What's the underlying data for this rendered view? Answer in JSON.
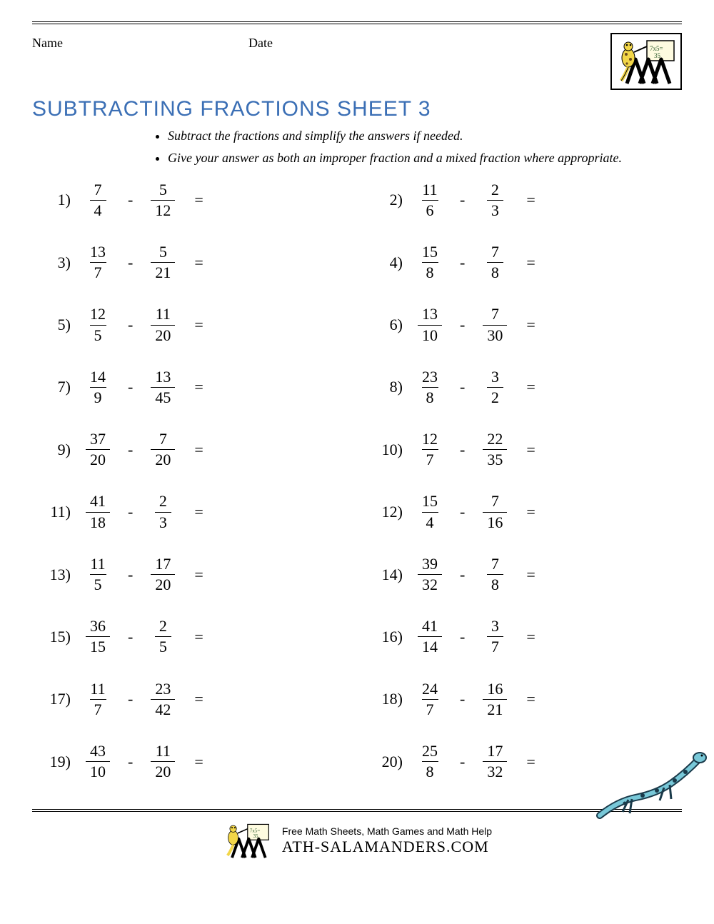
{
  "header": {
    "name_label": "Name",
    "date_label": "Date"
  },
  "title": "SUBTRACTING FRACTIONS SHEET 3",
  "instructions": [
    "Subtract the fractions and simplify the answers if needed.",
    "Give your answer as both an improper fraction and a mixed fraction where appropriate."
  ],
  "symbols": {
    "minus": "-",
    "equals": "=",
    "paren": ")"
  },
  "problems": [
    {
      "n": "1",
      "a_num": "7",
      "a_den": "4",
      "b_num": "5",
      "b_den": "12"
    },
    {
      "n": "2",
      "a_num": "11",
      "a_den": "6",
      "b_num": "2",
      "b_den": "3"
    },
    {
      "n": "3",
      "a_num": "13",
      "a_den": "7",
      "b_num": "5",
      "b_den": "21"
    },
    {
      "n": "4",
      "a_num": "15",
      "a_den": "8",
      "b_num": "7",
      "b_den": "8"
    },
    {
      "n": "5",
      "a_num": "12",
      "a_den": "5",
      "b_num": "11",
      "b_den": "20"
    },
    {
      "n": "6",
      "a_num": "13",
      "a_den": "10",
      "b_num": "7",
      "b_den": "30"
    },
    {
      "n": "7",
      "a_num": "14",
      "a_den": "9",
      "b_num": "13",
      "b_den": "45"
    },
    {
      "n": "8",
      "a_num": "23",
      "a_den": "8",
      "b_num": "3",
      "b_den": "2"
    },
    {
      "n": "9",
      "a_num": "37",
      "a_den": "20",
      "b_num": "7",
      "b_den": "20"
    },
    {
      "n": "10",
      "a_num": "12",
      "a_den": "7",
      "b_num": "22",
      "b_den": "35"
    },
    {
      "n": "11",
      "a_num": "41",
      "a_den": "18",
      "b_num": "2",
      "b_den": "3"
    },
    {
      "n": "12",
      "a_num": "15",
      "a_den": "4",
      "b_num": "7",
      "b_den": "16"
    },
    {
      "n": "13",
      "a_num": "11",
      "a_den": "5",
      "b_num": "17",
      "b_den": "20"
    },
    {
      "n": "14",
      "a_num": "39",
      "a_den": "32",
      "b_num": "7",
      "b_den": "8"
    },
    {
      "n": "15",
      "a_num": "36",
      "a_den": "15",
      "b_num": "2",
      "b_den": "5"
    },
    {
      "n": "16",
      "a_num": "41",
      "a_den": "14",
      "b_num": "3",
      "b_den": "7"
    },
    {
      "n": "17",
      "a_num": "11",
      "a_den": "7",
      "b_num": "23",
      "b_den": "42"
    },
    {
      "n": "18",
      "a_num": "24",
      "a_den": "7",
      "b_num": "16",
      "b_den": "21"
    },
    {
      "n": "19",
      "a_num": "43",
      "a_den": "10",
      "b_num": "11",
      "b_den": "20"
    },
    {
      "n": "20",
      "a_num": "25",
      "a_den": "8",
      "b_num": "17",
      "b_den": "32"
    }
  ],
  "footer": {
    "tagline": "Free Math Sheets, Math Games and Math Help",
    "brand_prefix": "ATH-SALAMANDERS.COM"
  },
  "colors": {
    "title": "#3b6fb5",
    "text": "#000000",
    "salamander_body": "#78c8d8",
    "salamander_dark": "#1a3a4a"
  }
}
